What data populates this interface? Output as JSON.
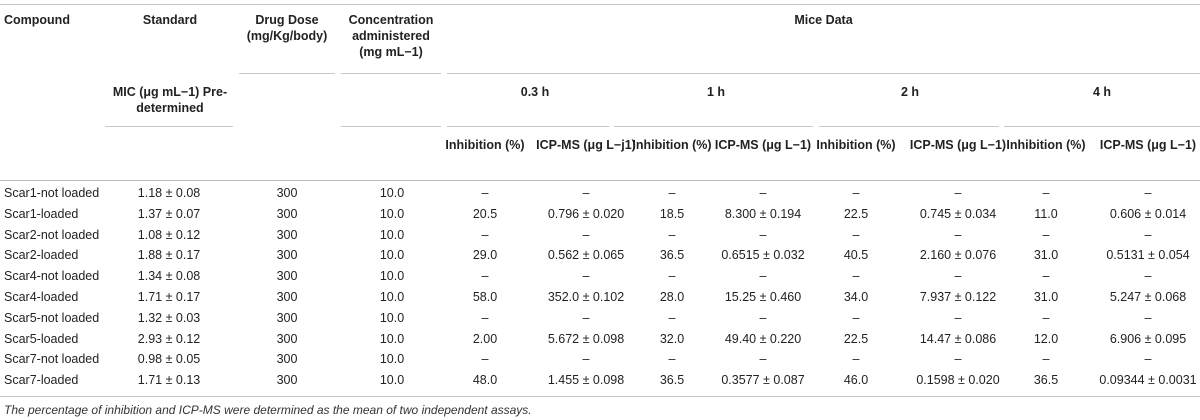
{
  "headers": {
    "compound": "Compound",
    "standard": "Standard",
    "drug_dose": "Drug Dose (mg/Kg/body)",
    "concentration": "Concentration administered (mg mL−1)",
    "mice_data": "Mice Data",
    "mic": "MIC (μg mL−1) Pre-determined",
    "times": [
      "0.3 h",
      "1 h",
      "2 h",
      "4 h"
    ],
    "sub": [
      "Inhibition (%)",
      "ICP-MS (μg L−j1)",
      "Inhibition (%)",
      "ICP-MS (μg L−1)",
      "Inhibition (%)",
      "ICP-MS (μg L−1)",
      "Inhibition (%)",
      "ICP-MS (μg L−1)"
    ]
  },
  "rows": [
    [
      "Scar1-not loaded",
      "1.18 ± 0.08",
      "300",
      "10.0",
      "–",
      "–",
      "–",
      "–",
      "–",
      "–",
      "–",
      "–"
    ],
    [
      "Scar1-loaded",
      "1.37 ± 0.07",
      "300",
      "10.0",
      "20.5",
      "0.796 ± 0.020",
      "18.5",
      "8.300 ± 0.194",
      "22.5",
      "0.745 ± 0.034",
      "11.0",
      "0.606 ± 0.014"
    ],
    [
      "Scar2-not loaded",
      "1.08 ± 0.12",
      "300",
      "10.0",
      "–",
      "–",
      "–",
      "–",
      "–",
      "–",
      "–",
      "–"
    ],
    [
      "Scar2-loaded",
      "1.88 ± 0.17",
      "300",
      "10.0",
      "29.0",
      "0.562 ± 0.065",
      "36.5",
      "0.6515 ± 0.032",
      "40.5",
      "2.160 ± 0.076",
      "31.0",
      "0.5131 ± 0.054"
    ],
    [
      "Scar4-not loaded",
      "1.34 ± 0.08",
      "300",
      "10.0",
      "–",
      "–",
      "–",
      "–",
      "–",
      "–",
      "–",
      "–"
    ],
    [
      "Scar4-loaded",
      "1.71 ± 0.17",
      "300",
      "10.0",
      "58.0",
      "352.0 ± 0.102",
      "28.0",
      "15.25 ± 0.460",
      "34.0",
      "7.937 ± 0.122",
      "31.0",
      "5.247 ± 0.068"
    ],
    [
      "Scar5-not loaded",
      "1.32 ± 0.03",
      "300",
      "10.0",
      "–",
      "–",
      "–",
      "–",
      "–",
      "–",
      "–",
      "–"
    ],
    [
      "Scar5-loaded",
      "2.93 ± 0.12",
      "300",
      "10.0",
      "2.00",
      "5.672 ± 0.098",
      "32.0",
      "49.40 ± 0.220",
      "22.5",
      "14.47 ± 0.086",
      "12.0",
      "6.906 ± 0.095"
    ],
    [
      "Scar7-not loaded",
      "0.98 ± 0.05",
      "300",
      "10.0",
      "–",
      "–",
      "–",
      "–",
      "–",
      "–",
      "–",
      "–"
    ],
    [
      "Scar7-loaded",
      "1.71 ± 0.13",
      "300",
      "10.0",
      "48.0",
      "1.455 ± 0.098",
      "36.5",
      "0.3577 ± 0.087",
      "46.0",
      "0.1598 ± 0.020",
      "36.5",
      "0.09344 ± 0.0031"
    ]
  ],
  "footnote": "The percentage of inhibition and ICP-MS were determined as the mean of two independent assays."
}
